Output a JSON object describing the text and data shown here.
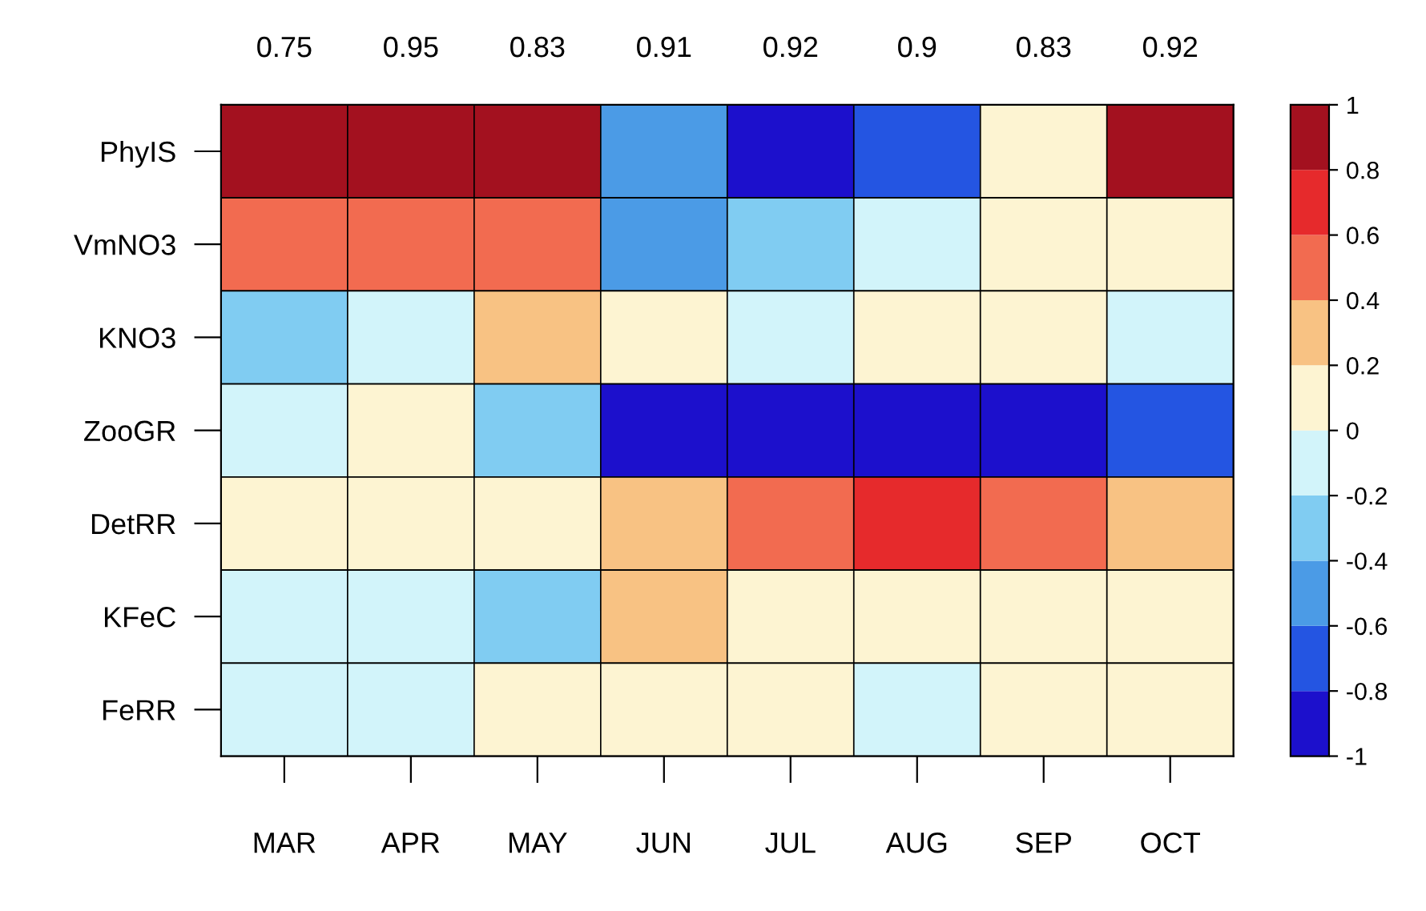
{
  "chart_data": {
    "type": "heatmap",
    "categories": [
      "MAR",
      "APR",
      "MAY",
      "JUN",
      "JUL",
      "AUG",
      "SEP",
      "OCT"
    ],
    "y_categories": [
      "PhyIS",
      "VmNO3",
      "KNO3",
      "ZooGR",
      "DetRR",
      "KFeC",
      "FeRR"
    ],
    "cells": [
      [
        0.9,
        0.9,
        0.9,
        -0.5,
        -0.9,
        -0.7,
        0.1,
        0.9
      ],
      [
        0.5,
        0.5,
        0.5,
        -0.5,
        -0.3,
        -0.1,
        0.1,
        0.1
      ],
      [
        -0.3,
        -0.1,
        0.3,
        0.1,
        -0.1,
        0.1,
        0.1,
        -0.1
      ],
      [
        -0.1,
        0.1,
        -0.3,
        -0.9,
        -0.9,
        -0.9,
        -0.9,
        -0.7
      ],
      [
        0.1,
        0.1,
        0.1,
        0.3,
        0.5,
        0.7,
        0.5,
        0.3
      ],
      [
        -0.1,
        -0.1,
        -0.3,
        0.3,
        0.1,
        0.1,
        0.1,
        0.1
      ],
      [
        -0.1,
        -0.1,
        0.1,
        0.1,
        0.1,
        -0.1,
        0.1,
        0.1
      ]
    ],
    "clim": [
      -1,
      1
    ],
    "cticks": [
      -1,
      -0.8,
      -0.6,
      -0.4,
      -0.2,
      0,
      0.2,
      0.4,
      0.6,
      0.8,
      1
    ],
    "colors": [
      "#1c10cc",
      "#2455e2",
      "#4b9be6",
      "#80ccf2",
      "#d2f4fa",
      "#fdf4d2",
      "#f8c283",
      "#f26b50",
      "#e62a2c",
      "#a3111f"
    ],
    "annotations": [
      "0.75",
      "0.95",
      "0.83",
      "0.91",
      "0.92",
      "0.9",
      "0.83",
      "0.92"
    ]
  }
}
